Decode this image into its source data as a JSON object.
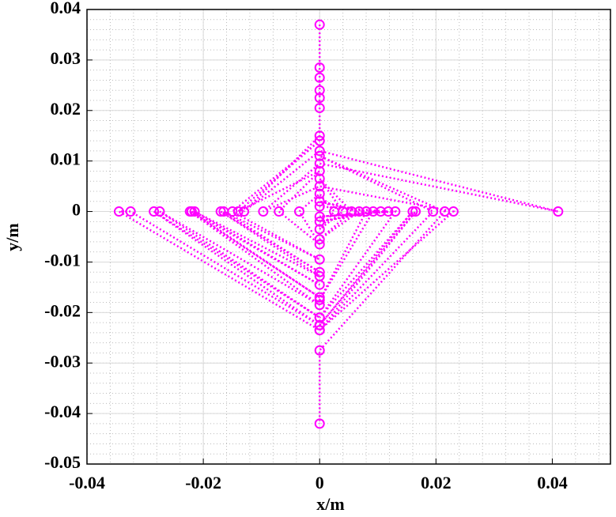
{
  "chart_data": {
    "type": "line",
    "xlabel": "x/m",
    "ylabel": "y/m",
    "xlim": [
      -0.04,
      0.05
    ],
    "ylim": [
      -0.05,
      0.04
    ],
    "xticks": [
      -0.04,
      -0.02,
      0,
      0.02,
      0.04
    ],
    "yticks": [
      -0.05,
      -0.04,
      -0.03,
      -0.02,
      -0.01,
      0,
      0.01,
      0.02,
      0.03,
      0.04
    ],
    "grid": true,
    "minor_grid": true,
    "series": [
      {
        "color": "#ff00ff",
        "x": [
          0,
          0,
          0,
          0,
          0,
          0,
          0,
          -0.013,
          0,
          0.041,
          0,
          -0.0097,
          0,
          0.023,
          0,
          -0.0345,
          -0.0325,
          0,
          -0.0285,
          0,
          -0.0275,
          0,
          -0.0223,
          0,
          -0.022,
          0,
          -0.0215,
          0,
          -0.017,
          0,
          -0.0165,
          0,
          -0.015,
          0,
          -0.014,
          0,
          -0.007,
          0,
          -0.0035,
          0,
          0.0025,
          0,
          0.004,
          0,
          0.0055,
          0,
          0.0068,
          0,
          0.008,
          0,
          0.0092,
          0,
          0.0105,
          0,
          0.0118,
          0,
          0.013,
          0,
          0.016,
          0,
          0.0165,
          0,
          0.0195,
          0,
          0.0215,
          0,
          0
        ],
        "values": [
          0.037,
          0.0285,
          0.0265,
          0.024,
          0.0225,
          0.0205,
          0.015,
          0,
          0.012,
          0,
          0.0095,
          0,
          0.005,
          0,
          -0.0235,
          0,
          0,
          -0.0225,
          0,
          -0.021,
          0,
          -0.0185,
          0,
          -0.017,
          0,
          -0.0145,
          0,
          -0.0128,
          0,
          -0.012,
          0,
          -0.0095,
          0,
          0.014,
          0,
          0.008,
          0,
          -0.0065,
          0,
          0.0035,
          0,
          -0.0035,
          0,
          0.0065,
          0,
          -0.0055,
          0,
          0.002,
          0,
          -0.0175,
          0,
          -0.002,
          0,
          0.001,
          0,
          -0.001,
          0,
          -0.021,
          0,
          -0.0225,
          0,
          -0.0235,
          0,
          0.011,
          0,
          -0.0275,
          -0.042
        ]
      }
    ]
  }
}
